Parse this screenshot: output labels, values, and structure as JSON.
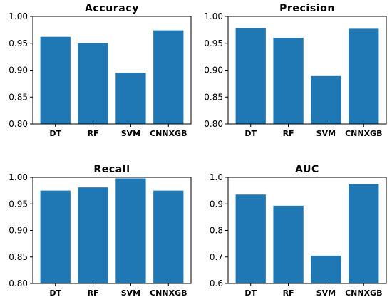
{
  "colors": {
    "bar": "#1f77b4",
    "axis": "#000000",
    "background": "#ffffff"
  },
  "chart_data": [
    {
      "type": "bar",
      "title": "Accuracy",
      "categories": [
        "DT",
        "RF",
        "SVM",
        "CNNXGB"
      ],
      "values": [
        0.962,
        0.95,
        0.895,
        0.974
      ],
      "ylim": [
        0.8,
        1.0
      ],
      "yticks": [
        0.8,
        0.85,
        0.9,
        0.95,
        1.0
      ],
      "ytick_labels": [
        "0.80",
        "0.85",
        "0.90",
        "0.95",
        "1.00"
      ],
      "xlabel": "",
      "ylabel": "",
      "grid": false
    },
    {
      "type": "bar",
      "title": "Precision",
      "categories": [
        "DT",
        "RF",
        "SVM",
        "CNNXGB"
      ],
      "values": [
        0.978,
        0.96,
        0.889,
        0.977
      ],
      "ylim": [
        0.8,
        1.0
      ],
      "yticks": [
        0.8,
        0.85,
        0.9,
        0.95,
        1.0
      ],
      "ytick_labels": [
        "0.80",
        "0.85",
        "0.90",
        "0.95",
        "1.00"
      ],
      "xlabel": "",
      "ylabel": "",
      "grid": false
    },
    {
      "type": "bar",
      "title": "Recall",
      "categories": [
        "DT",
        "RF",
        "SVM",
        "CNNXGB"
      ],
      "values": [
        0.975,
        0.981,
        0.998,
        0.975
      ],
      "ylim": [
        0.8,
        1.0
      ],
      "yticks": [
        0.8,
        0.85,
        0.9,
        0.95,
        1.0
      ],
      "ytick_labels": [
        "0.80",
        "0.85",
        "0.90",
        "0.95",
        "1.00"
      ],
      "xlabel": "",
      "ylabel": "",
      "grid": false
    },
    {
      "type": "bar",
      "title": "AUC",
      "categories": [
        "DT",
        "RF",
        "SVM",
        "CNNXGB"
      ],
      "values": [
        0.935,
        0.893,
        0.705,
        0.974
      ],
      "ylim": [
        0.6,
        1.0
      ],
      "yticks": [
        0.6,
        0.7,
        0.8,
        0.9,
        1.0
      ],
      "ytick_labels": [
        "0.6",
        "0.7",
        "0.8",
        "0.9",
        "1.0"
      ],
      "xlabel": "",
      "ylabel": "",
      "grid": false
    }
  ]
}
